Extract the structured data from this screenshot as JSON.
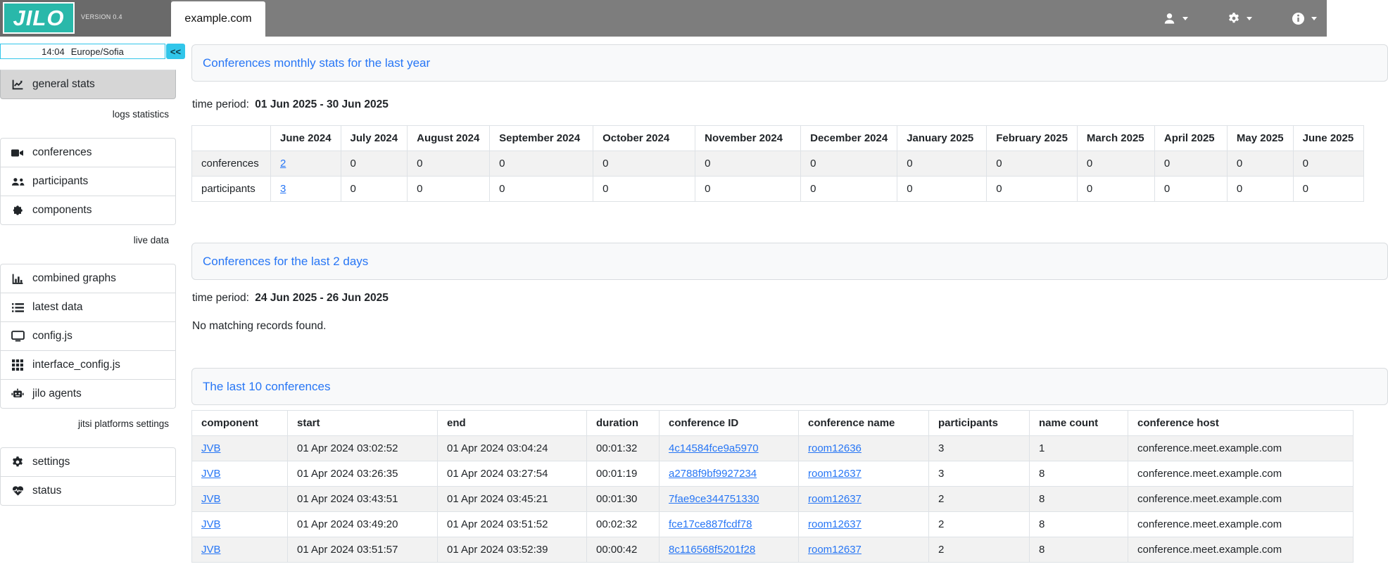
{
  "colors": {
    "accent_teal": "#29b8aa",
    "link_blue": "#2776f5",
    "navbar_gray": "#7d7d7d",
    "navbar_left_gray": "#6a6a6a",
    "clock_cyan": "#31c6ea",
    "active_item_gray": "#d6d6d6",
    "stripe_gray": "#f2f2f2"
  },
  "navbar": {
    "logo_text": "JILO",
    "version": "VERSION 0.4",
    "active_tab": "example.com",
    "menus": [
      {
        "icon": "user-icon",
        "name": "user-menu"
      },
      {
        "icon": "gear-icon",
        "name": "settings-menu"
      },
      {
        "icon": "info-icon",
        "name": "info-menu"
      }
    ]
  },
  "sidebar": {
    "clock": {
      "time": "14:04",
      "timezone": "Europe/Sofia",
      "collapse_label": "<<"
    },
    "groups": [
      {
        "items": [
          {
            "label": "general stats",
            "icon": "chart-line-icon",
            "active": true
          }
        ]
      },
      {
        "label": "logs statistics"
      },
      {
        "items": [
          {
            "label": "conferences",
            "icon": "video-camera-icon"
          },
          {
            "label": "participants",
            "icon": "users-icon"
          },
          {
            "label": "components",
            "icon": "puzzle-icon"
          }
        ]
      },
      {
        "label": "live data"
      },
      {
        "items": [
          {
            "label": "combined graphs",
            "icon": "bar-chart-icon"
          },
          {
            "label": "latest data",
            "icon": "list-icon"
          },
          {
            "label": "config.js",
            "icon": "monitor-icon"
          },
          {
            "label": "interface_config.js",
            "icon": "grid-icon"
          },
          {
            "label": "jilo agents",
            "icon": "robot-icon"
          }
        ]
      },
      {
        "label": "jitsi platforms settings"
      },
      {
        "items": [
          {
            "label": "settings",
            "icon": "gear-icon"
          },
          {
            "label": "status",
            "icon": "heart-pulse-icon"
          }
        ]
      }
    ]
  },
  "sections": {
    "monthly": {
      "title": "Conferences monthly stats for the last year",
      "time_period_label": "time period:",
      "time_period": "01 Jun 2025 - 30 Jun 2025",
      "table": {
        "columns": [
          "",
          "June 2024",
          "July 2024",
          "August 2024",
          "September 2024",
          "October 2024",
          "November 2024",
          "December 2024",
          "January 2025",
          "February 2025",
          "March 2025",
          "April 2025",
          "May 2025",
          "June 2025"
        ],
        "rows": [
          {
            "label": "conferences",
            "values": [
              "2",
              "0",
              "0",
              "0",
              "0",
              "0",
              "0",
              "0",
              "0",
              "0",
              "0",
              "0",
              "0"
            ],
            "link_value_indexes": [
              0
            ]
          },
          {
            "label": "participants",
            "values": [
              "3",
              "0",
              "0",
              "0",
              "0",
              "0",
              "0",
              "0",
              "0",
              "0",
              "0",
              "0",
              "0"
            ],
            "link_value_indexes": [
              0
            ]
          }
        ]
      }
    },
    "last2days": {
      "title": "Conferences for the last 2 days",
      "time_period_label": "time period:",
      "time_period": "24 Jun 2025 - 26 Jun 2025",
      "empty_message": "No matching records found."
    },
    "last10": {
      "title": "The last 10 conferences",
      "table": {
        "columns": [
          "component",
          "start",
          "end",
          "duration",
          "conference ID",
          "conference name",
          "participants",
          "name count",
          "conference host"
        ],
        "link_column_indexes": [
          0,
          4,
          5
        ],
        "link_column_names": {
          "0": "component-link",
          "4": "conference-id-link",
          "5": "conference-name-link"
        },
        "rows": [
          [
            "JVB",
            "01 Apr 2024 03:02:52",
            "01 Apr 2024 03:04:24",
            "00:01:32",
            "4c14584fce9a5970",
            "room12636",
            "3",
            "1",
            "conference.meet.example.com"
          ],
          [
            "JVB",
            "01 Apr 2024 03:26:35",
            "01 Apr 2024 03:27:54",
            "00:01:19",
            "a2788f9bf9927234",
            "room12637",
            "3",
            "8",
            "conference.meet.example.com"
          ],
          [
            "JVB",
            "01 Apr 2024 03:43:51",
            "01 Apr 2024 03:45:21",
            "00:01:30",
            "7fae9ce344751330",
            "room12637",
            "2",
            "8",
            "conference.meet.example.com"
          ],
          [
            "JVB",
            "01 Apr 2024 03:49:20",
            "01 Apr 2024 03:51:52",
            "00:02:32",
            "fce17ce887fcdf78",
            "room12637",
            "2",
            "8",
            "conference.meet.example.com"
          ],
          [
            "JVB",
            "01 Apr 2024 03:51:57",
            "01 Apr 2024 03:52:39",
            "00:00:42",
            "8c116568f5201f28",
            "room12637",
            "2",
            "8",
            "conference.meet.example.com"
          ]
        ]
      }
    }
  }
}
